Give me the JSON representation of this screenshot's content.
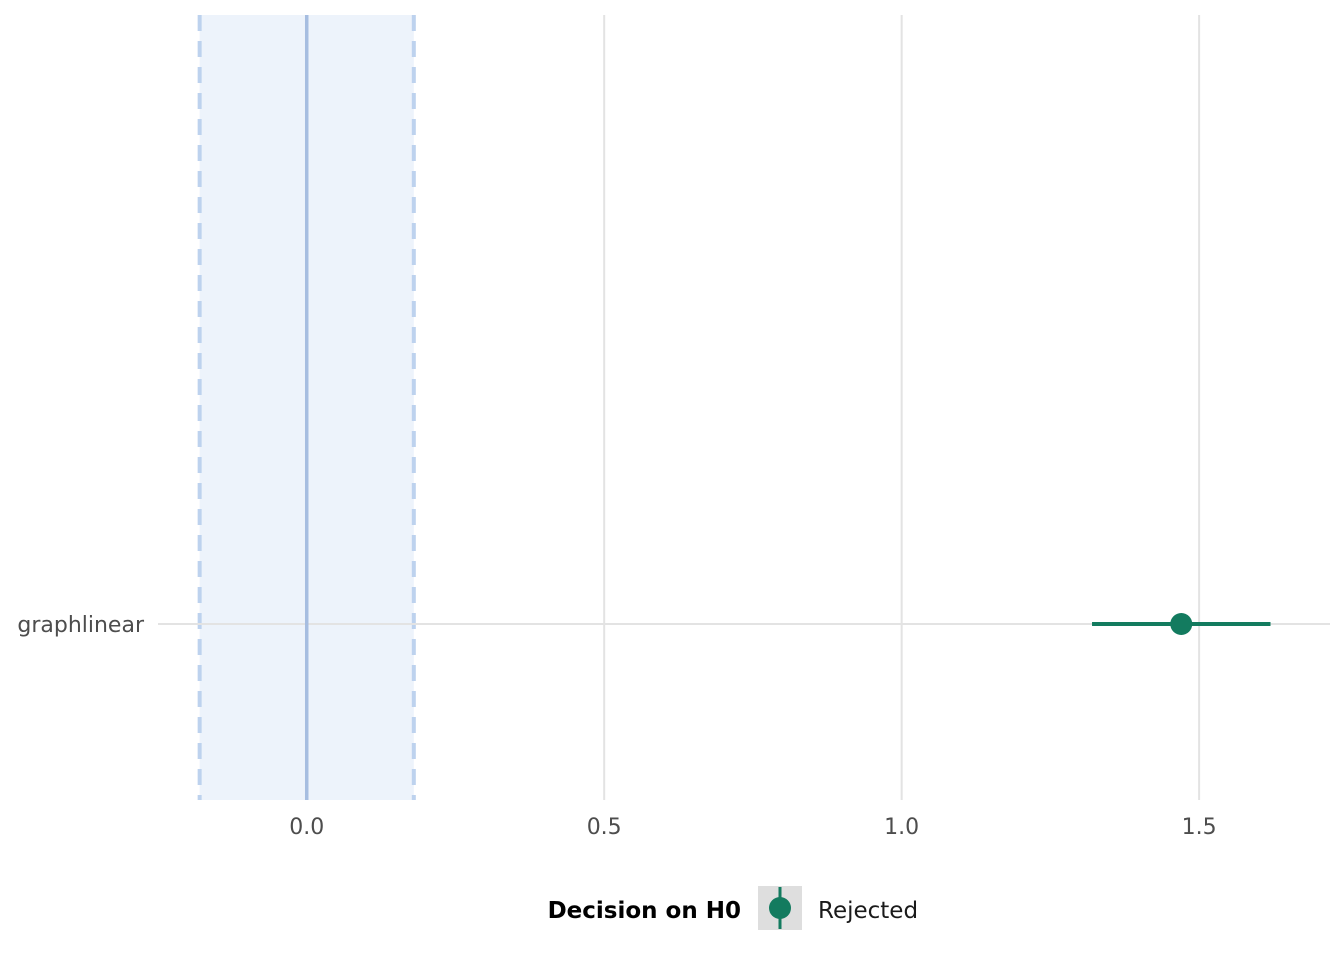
{
  "chart_data": {
    "type": "forest",
    "title": "",
    "xlabel": "",
    "ylabel": "",
    "xlim": [
      -0.25,
      1.72
    ],
    "x_ticks": [
      0.0,
      0.5,
      1.0,
      1.5
    ],
    "x_tick_labels": [
      "0.0",
      "0.5",
      "1.0",
      "1.5"
    ],
    "categories": [
      "graphlinear"
    ],
    "series": [
      {
        "category": "graphlinear",
        "estimate": 1.47,
        "ci_low": 1.32,
        "ci_high": 1.62,
        "decision": "Rejected"
      }
    ],
    "rope": {
      "low": -0.18,
      "high": 0.18,
      "center": 0.0
    },
    "grid": true,
    "legend": {
      "position": "bottom",
      "title": "Decision on H0",
      "items": [
        {
          "label": "Rejected",
          "color": "#137b5f"
        }
      ]
    },
    "colors": {
      "point": "#137b5f",
      "rope_fill": "#edf3fb",
      "rope_border": "#bdd2ee",
      "zero_line": "#a6bde0",
      "grid": "#e3e3e3"
    }
  }
}
